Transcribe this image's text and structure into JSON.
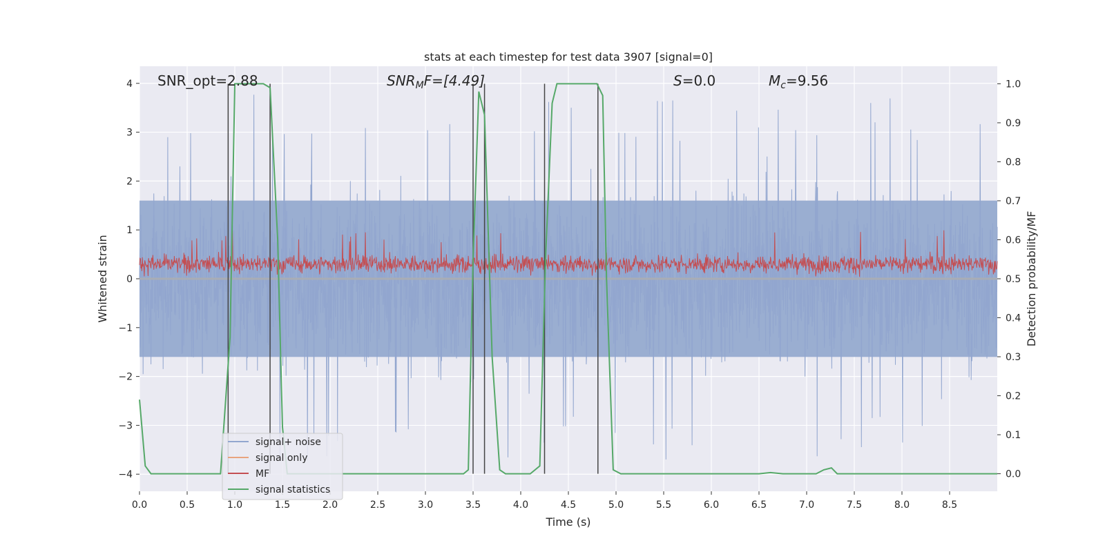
{
  "chart_data": {
    "type": "line",
    "title": "stats at each timestep for test data 3907 [signal=0]",
    "xlabel": "Time (s)",
    "ylabel": "Whitened strain",
    "ylabel_right": "Detection probability/MF",
    "xlim": [
      0,
      9.0
    ],
    "ylim": [
      -4.35,
      4.35
    ],
    "ylim_right": [
      -0.045,
      1.045
    ],
    "x_ticks": [
      0.0,
      0.5,
      1.0,
      1.5,
      2.0,
      2.5,
      3.0,
      3.5,
      4.0,
      4.5,
      5.0,
      5.5,
      6.0,
      6.5,
      7.0,
      7.5,
      8.0,
      8.5
    ],
    "x_tick_labels": [
      "0.0",
      "0.5",
      "1.0",
      "1.5",
      "2.0",
      "2.5",
      "3.0",
      "3.5",
      "4.0",
      "4.5",
      "5.0",
      "5.5",
      "6.0",
      "6.5",
      "7.0",
      "7.5",
      "8.0",
      "8.5"
    ],
    "y_ticks": [
      -4,
      -3,
      -2,
      -1,
      0,
      1,
      2,
      3,
      4
    ],
    "y_tick_labels": [
      "−4",
      "−3",
      "−2",
      "−1",
      "0",
      "1",
      "2",
      "3",
      "4"
    ],
    "y_right_ticks": [
      0.0,
      0.1,
      0.2,
      0.3,
      0.4,
      0.5,
      0.6,
      0.7,
      0.8,
      0.9,
      1.0
    ],
    "y_right_tick_labels": [
      "0.0",
      "0.1",
      "0.2",
      "0.3",
      "0.4",
      "0.5",
      "0.6",
      "0.7",
      "0.8",
      "0.9",
      "1.0"
    ],
    "grid": true,
    "legend_position": "lower-left",
    "annotations": {
      "snr_opt": "SNR_opt=2.88",
      "snr_mf_main": "SNR",
      "snr_mf_sub": "M",
      "snr_mf_rest": "F=[4.49]",
      "s_var": "S",
      "s_rest": "=0.0",
      "mc_main": "M",
      "mc_sub": "c",
      "mc_rest": "=9.56"
    },
    "series": [
      {
        "name": "signal+ noise",
        "color": "#92a6cf",
        "style": "noise band, amplitude about ±2.5 with spikes to ±3.8"
      },
      {
        "name": "signal only",
        "color": "#e8a37e",
        "values": []
      },
      {
        "name": "MF",
        "color": "#c44e52",
        "style": "noise band about 0.05–0.85"
      },
      {
        "name": "signal statistics",
        "color": "#55a868",
        "axis": "right",
        "x": [
          0.0,
          0.06,
          0.12,
          0.2,
          0.85,
          0.95,
          1.0,
          1.3,
          1.37,
          1.45,
          1.5,
          1.55,
          3.4,
          3.45,
          3.5,
          3.56,
          3.62,
          3.7,
          3.78,
          3.84,
          3.95,
          4.1,
          4.2,
          4.26,
          4.33,
          4.38,
          4.45,
          4.8,
          4.86,
          4.9,
          4.97,
          5.05,
          6.5,
          6.62,
          6.75,
          7.1,
          7.18,
          7.26,
          7.32,
          7.4,
          9.0
        ],
        "y": [
          0.19,
          0.02,
          0.0,
          0.0,
          0.0,
          0.35,
          1.0,
          1.0,
          0.99,
          0.6,
          0.12,
          0.0,
          0.0,
          0.01,
          0.55,
          0.98,
          0.92,
          0.3,
          0.01,
          0.0,
          0.0,
          0.0,
          0.02,
          0.55,
          0.95,
          1.0,
          1.0,
          1.0,
          0.97,
          0.5,
          0.01,
          0.0,
          0.0,
          0.003,
          0.0,
          0.0,
          0.01,
          0.015,
          0.0,
          0.0,
          0.0
        ]
      }
    ],
    "vertical_lines_x": [
      0.93,
      1.37,
      3.5,
      3.62,
      4.25,
      4.81
    ],
    "legend": [
      {
        "label": "signal+ noise",
        "color": "#92a6cf"
      },
      {
        "label": "signal only",
        "color": "#e8a37e"
      },
      {
        "label": "MF",
        "color": "#c44e52"
      },
      {
        "label": "signal statistics",
        "color": "#55a868"
      }
    ],
    "colors": {
      "plot_background": "#eaeaf2",
      "grid": "#ffffff",
      "noise": "#92a6cf",
      "noise_dense": "#9aaed1",
      "mf": "#c44e52",
      "stats": "#55a868",
      "vline": "#444444"
    }
  }
}
